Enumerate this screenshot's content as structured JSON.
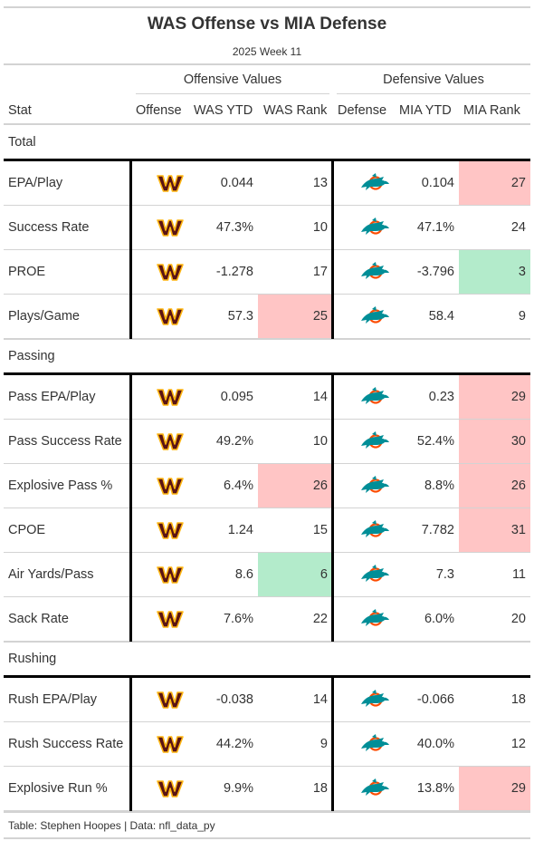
{
  "title": "WAS Offense vs MIA Defense",
  "subtitle": "2025 Week 11",
  "spanners": {
    "offense": "Offensive Values",
    "defense": "Defensive Values"
  },
  "columns": {
    "stat": "Stat",
    "offense": "Offense",
    "off_ytd": "WAS YTD",
    "off_rank": "WAS Rank",
    "defense": "Defense",
    "def_ytd": "MIA YTD",
    "def_rank": "MIA Rank"
  },
  "colors": {
    "rank_bad": "#ffc5c5",
    "rank_good": "#b3ebcb",
    "commanders_burgundy": "#5a1414",
    "commanders_gold": "#ffb612",
    "dolphins_aqua": "#008e97",
    "dolphins_orange": "#fc4c02"
  },
  "icons": {
    "offense_logo": "commanders-logo-icon",
    "defense_logo": "dolphins-logo-icon"
  },
  "groups": [
    {
      "label": "Total",
      "rows": [
        {
          "stat": "EPA/Play",
          "off_ytd": "0.044",
          "off_rank": "13",
          "off_hl": "",
          "def_ytd": "0.104",
          "def_rank": "27",
          "def_hl": "bad"
        },
        {
          "stat": "Success Rate",
          "off_ytd": "47.3%",
          "off_rank": "10",
          "off_hl": "",
          "def_ytd": "47.1%",
          "def_rank": "24",
          "def_hl": ""
        },
        {
          "stat": "PROE",
          "off_ytd": "-1.278",
          "off_rank": "17",
          "off_hl": "",
          "def_ytd": "-3.796",
          "def_rank": "3",
          "def_hl": "good"
        },
        {
          "stat": "Plays/Game",
          "off_ytd": "57.3",
          "off_rank": "25",
          "off_hl": "bad",
          "def_ytd": "58.4",
          "def_rank": "9",
          "def_hl": ""
        }
      ]
    },
    {
      "label": "Passing",
      "rows": [
        {
          "stat": "Pass EPA/Play",
          "off_ytd": "0.095",
          "off_rank": "14",
          "off_hl": "",
          "def_ytd": "0.23",
          "def_rank": "29",
          "def_hl": "bad"
        },
        {
          "stat": "Pass Success Rate",
          "off_ytd": "49.2%",
          "off_rank": "10",
          "off_hl": "",
          "def_ytd": "52.4%",
          "def_rank": "30",
          "def_hl": "bad"
        },
        {
          "stat": "Explosive Pass %",
          "off_ytd": "6.4%",
          "off_rank": "26",
          "off_hl": "bad",
          "def_ytd": "8.8%",
          "def_rank": "26",
          "def_hl": "bad"
        },
        {
          "stat": "CPOE",
          "off_ytd": "1.24",
          "off_rank": "15",
          "off_hl": "",
          "def_ytd": "7.782",
          "def_rank": "31",
          "def_hl": "bad"
        },
        {
          "stat": "Air Yards/Pass",
          "off_ytd": "8.6",
          "off_rank": "6",
          "off_hl": "good",
          "def_ytd": "7.3",
          "def_rank": "11",
          "def_hl": ""
        },
        {
          "stat": "Sack Rate",
          "off_ytd": "7.6%",
          "off_rank": "22",
          "off_hl": "",
          "def_ytd": "6.0%",
          "def_rank": "20",
          "def_hl": ""
        }
      ]
    },
    {
      "label": "Rushing",
      "rows": [
        {
          "stat": "Rush EPA/Play",
          "off_ytd": "-0.038",
          "off_rank": "14",
          "off_hl": "",
          "def_ytd": "-0.066",
          "def_rank": "18",
          "def_hl": ""
        },
        {
          "stat": "Rush Success Rate",
          "off_ytd": "44.2%",
          "off_rank": "9",
          "off_hl": "",
          "def_ytd": "40.0%",
          "def_rank": "12",
          "def_hl": ""
        },
        {
          "stat": "Explosive Run %",
          "off_ytd": "9.9%",
          "off_rank": "18",
          "off_hl": "",
          "def_ytd": "13.8%",
          "def_rank": "29",
          "def_hl": "bad"
        }
      ]
    }
  ],
  "footer": "Table: Stephen Hoopes | Data: nfl_data_py"
}
